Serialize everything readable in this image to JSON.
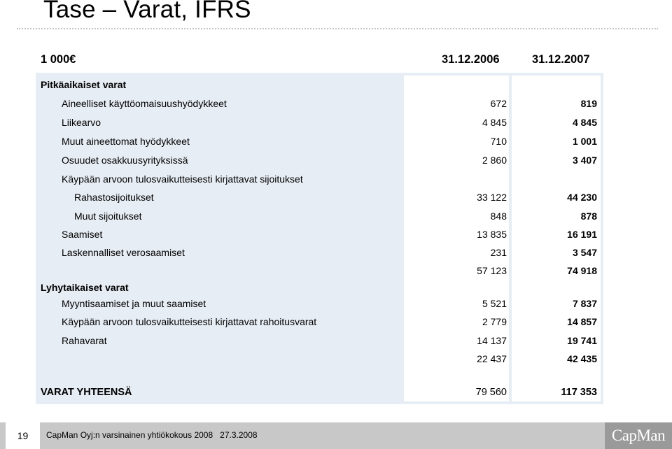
{
  "title": "Tase – Varat, IFRS",
  "header": {
    "unit": "1 000€",
    "col1": "31.12.2006",
    "col2": "31.12.2007"
  },
  "rows": [
    {
      "label": "Pitkäaikaiset varat",
      "v1": "",
      "v2": "",
      "bold": true,
      "indent": 0
    },
    {
      "label": "Aineelliset käyttöomaisuushyödykkeet",
      "v1": "672",
      "v2": "819",
      "indent": 1
    },
    {
      "label": "Liikearvo",
      "v1": "4 845",
      "v2": "4 845",
      "indent": 1
    },
    {
      "label": "Muut aineettomat hyödykkeet",
      "v1": "710",
      "v2": "1 001",
      "indent": 1
    },
    {
      "label": "Osuudet osakkuusyrityksissä",
      "v1": "2 860",
      "v2": "3 407",
      "indent": 1
    },
    {
      "label": "Käypään arvoon tulosvaikutteisesti kirjattavat sijoitukset",
      "v1": "",
      "v2": "",
      "indent": 1
    },
    {
      "label": "Rahastosijoitukset",
      "v1": "33 122",
      "v2": "44 230",
      "indent": 2
    },
    {
      "label": "Muut sijoitukset",
      "v1": "848",
      "v2": "878",
      "indent": 2
    },
    {
      "label": "Saamiset",
      "v1": "13 835",
      "v2": "16 191",
      "indent": 1
    },
    {
      "label": "Laskennalliset verosaamiset",
      "v1": "231",
      "v2": "3 547",
      "indent": 1
    },
    {
      "label": "",
      "v1": "57 123",
      "v2": "74 918",
      "indent": 1
    },
    {
      "label": "Lyhytaikaiset varat",
      "v1": "",
      "v2": "",
      "bold": true,
      "indent": 0
    },
    {
      "label": "Myyntisaamiset ja muut saamiset",
      "v1": "5 521",
      "v2": "7 837",
      "indent": 1
    },
    {
      "label": "Käypään arvoon tulosvaikutteisesti kirjattavat rahoitusvarat",
      "v1": "2 779",
      "v2": "14 857",
      "indent": 1
    },
    {
      "label": "Rahavarat",
      "v1": "14 137",
      "v2": "19 741",
      "indent": 1
    },
    {
      "label": "",
      "v1": "22 437",
      "v2": "42 435",
      "indent": 1
    }
  ],
  "total": {
    "label": "VARAT YHTEENSÄ",
    "v1": "79 560",
    "v2": "117 353"
  },
  "footer": {
    "page": "19",
    "text": "CapMan Oyj:n varsinainen yhtiökokous 2008",
    "date": "27.3.2008",
    "logo": "CapMan"
  }
}
